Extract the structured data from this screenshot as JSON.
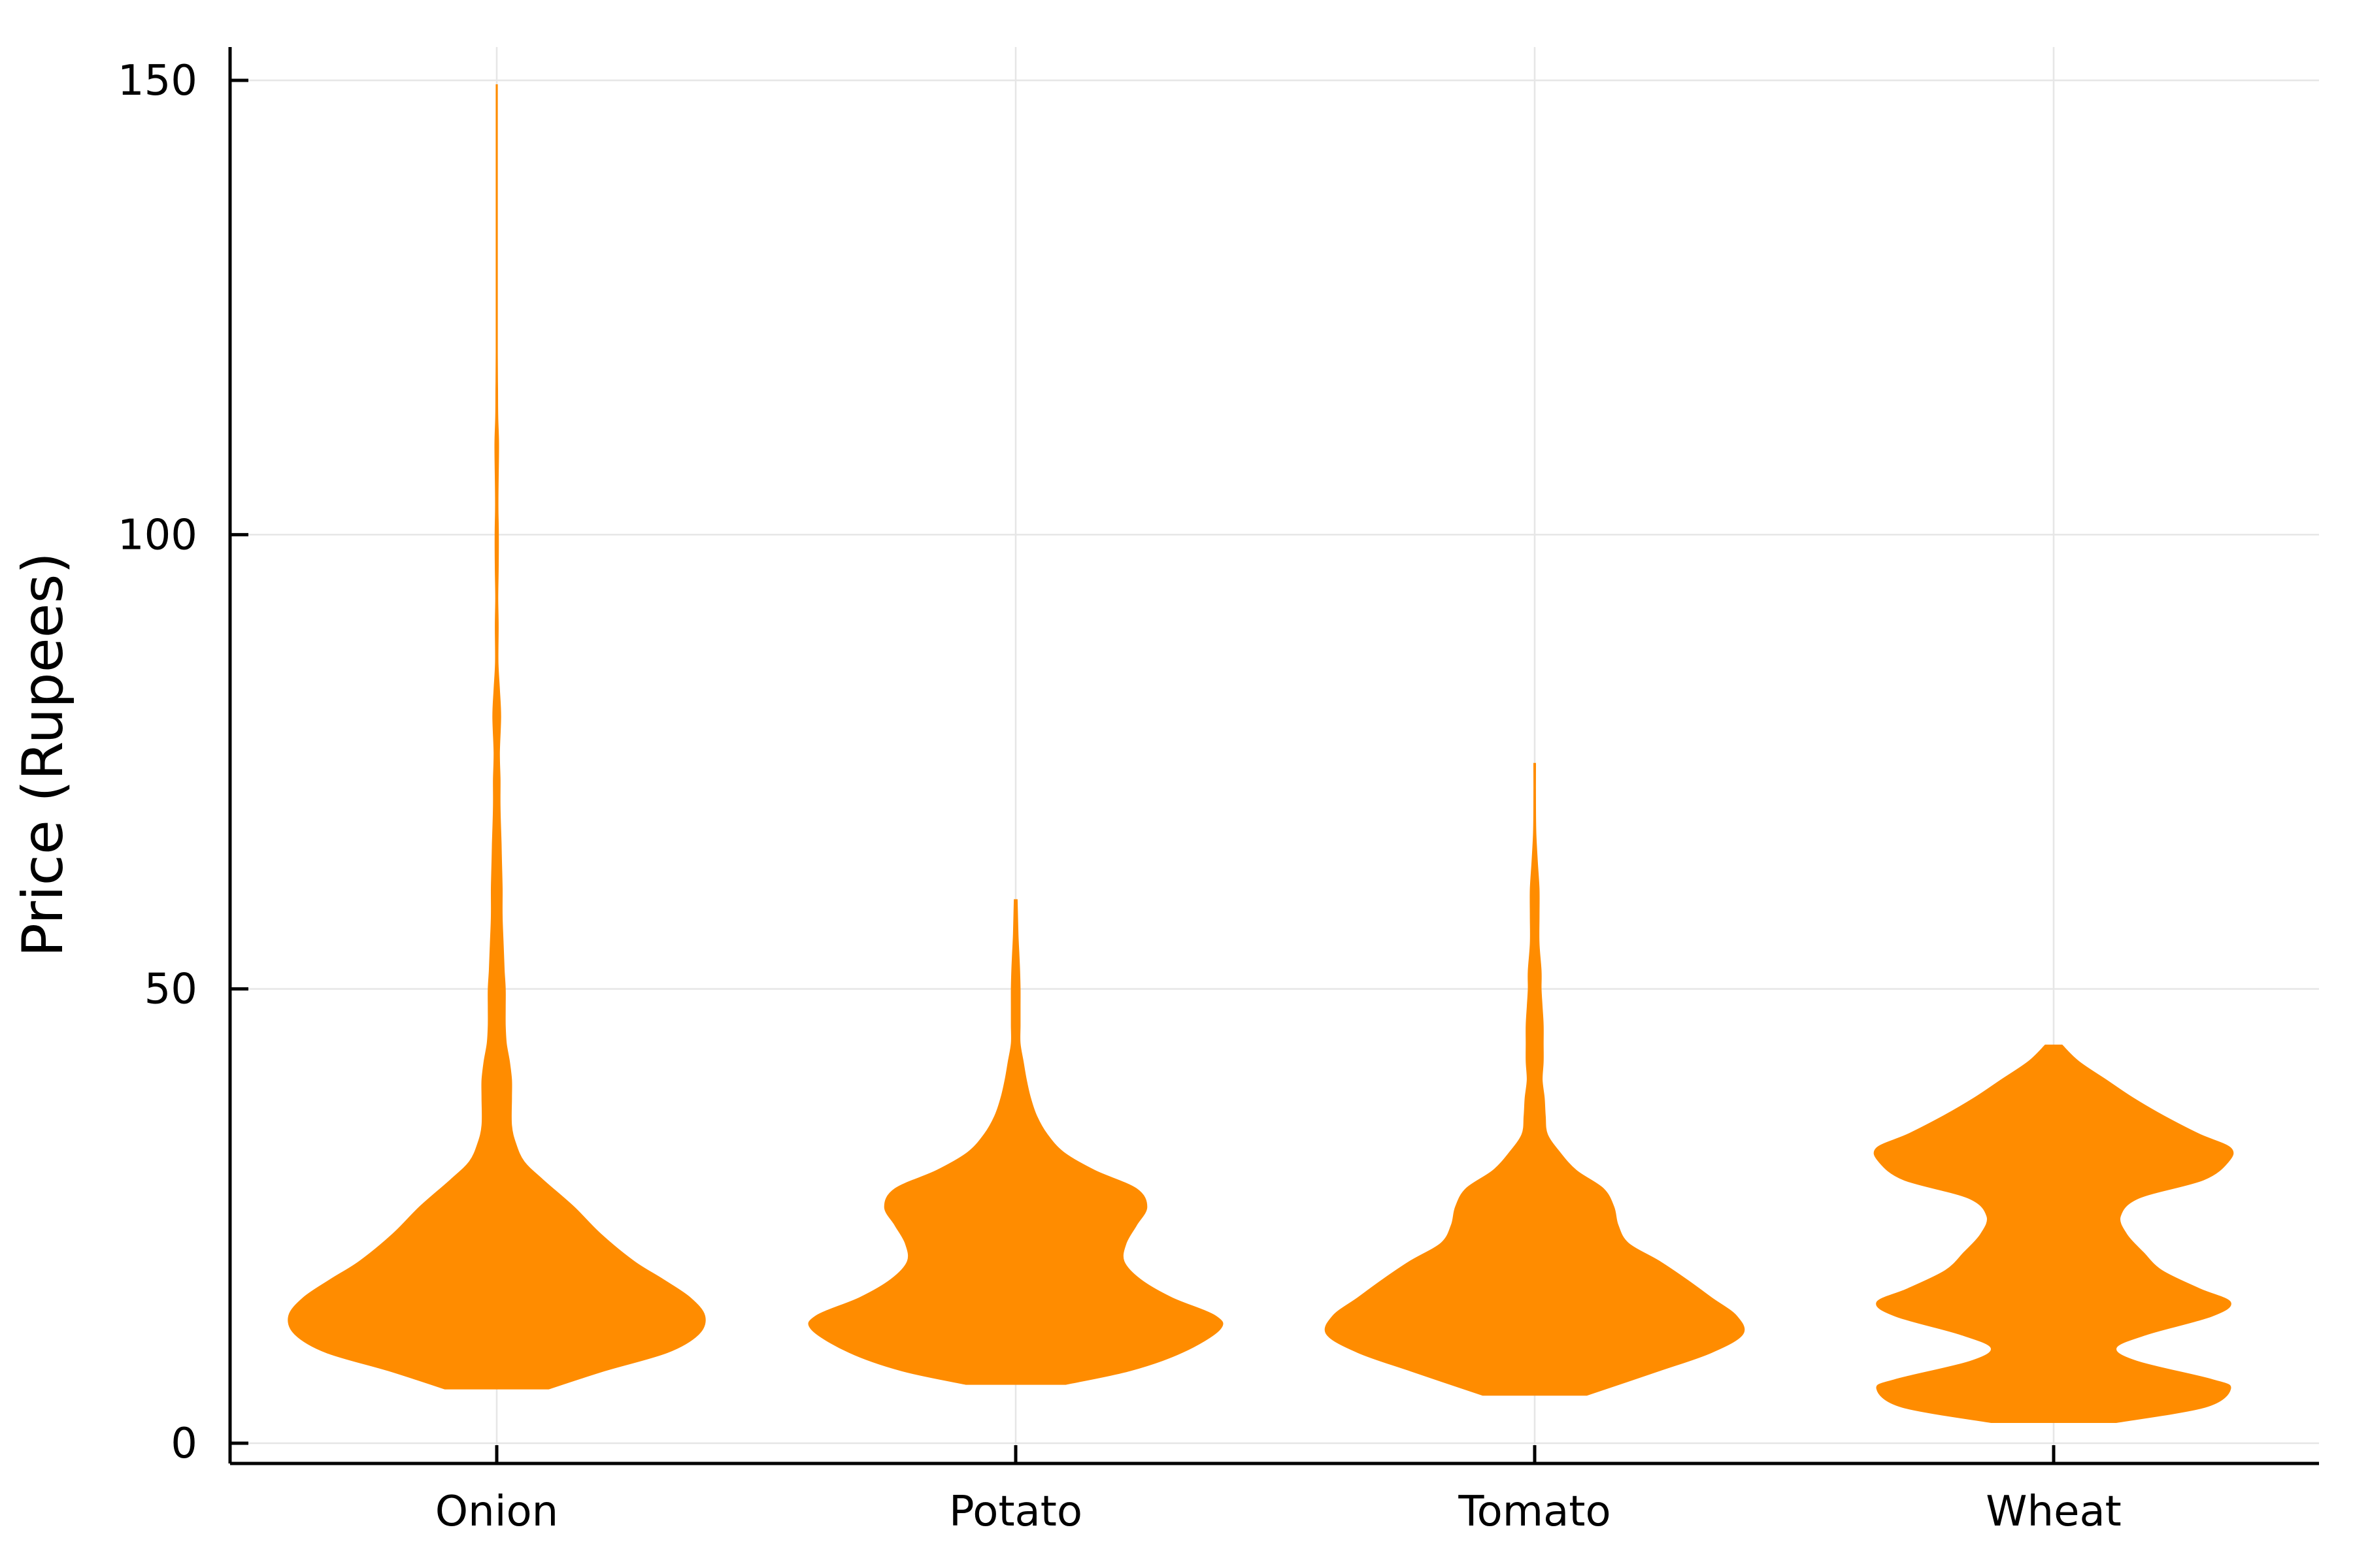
{
  "chart_data": {
    "type": "violin",
    "categories": [
      "Onion",
      "Potato",
      "Tomato",
      "Wheat"
    ],
    "ylabel": "Price (Rupees)",
    "xlabel": "",
    "ylim": [
      -4,
      154
    ],
    "yticks": [
      0,
      50,
      100,
      150
    ],
    "grid": true,
    "legend": "none",
    "color": "#ff8c00",
    "violins": [
      {
        "category": "Onion",
        "min": 6,
        "max": 149.5,
        "profile": [
          [
            6,
            0.25
          ],
          [
            8,
            0.52
          ],
          [
            10,
            0.82
          ],
          [
            12,
            0.97
          ],
          [
            14,
            1.0
          ],
          [
            16,
            0.93
          ],
          [
            18,
            0.8
          ],
          [
            20,
            0.66
          ],
          [
            23,
            0.5
          ],
          [
            26,
            0.37
          ],
          [
            29,
            0.22
          ],
          [
            31,
            0.13
          ],
          [
            33,
            0.09
          ],
          [
            35,
            0.07
          ],
          [
            38,
            0.07
          ],
          [
            40,
            0.07
          ],
          [
            42,
            0.06
          ],
          [
            44,
            0.045
          ],
          [
            46,
            0.04
          ],
          [
            48,
            0.04
          ],
          [
            50,
            0.04
          ],
          [
            52,
            0.035
          ],
          [
            55,
            0.03
          ],
          [
            58,
            0.025
          ],
          [
            61,
            0.025
          ],
          [
            64,
            0.022
          ],
          [
            66,
            0.02
          ],
          [
            70,
            0.015
          ],
          [
            73,
            0.015
          ],
          [
            76,
            0.012
          ],
          [
            80,
            0.018
          ],
          [
            83,
            0.012
          ],
          [
            86,
            0.005
          ],
          [
            90,
            0.006
          ],
          [
            93,
            0.004
          ],
          [
            96,
            0.006
          ],
          [
            100,
            0.007
          ],
          [
            103,
            0.005
          ],
          [
            106,
            0.006
          ],
          [
            110,
            0.008
          ],
          [
            113,
            0.004
          ],
          [
            116,
            0.003
          ],
          [
            120,
            0.002
          ],
          [
            130,
            0.002
          ],
          [
            140,
            0.002
          ],
          [
            149.5,
            0.002
          ]
        ]
      },
      {
        "category": "Potato",
        "min": 6.5,
        "max": 59.8,
        "profile": [
          [
            6.5,
            0.24
          ],
          [
            8,
            0.55
          ],
          [
            10,
            0.8
          ],
          [
            12.5,
            0.98
          ],
          [
            14,
            0.96
          ],
          [
            16,
            0.75
          ],
          [
            18,
            0.6
          ],
          [
            20,
            0.52
          ],
          [
            22,
            0.53
          ],
          [
            24,
            0.58
          ],
          [
            26,
            0.63
          ],
          [
            28,
            0.58
          ],
          [
            30,
            0.38
          ],
          [
            32,
            0.23
          ],
          [
            34,
            0.15
          ],
          [
            36,
            0.1
          ],
          [
            38,
            0.07
          ],
          [
            40,
            0.05
          ],
          [
            42,
            0.035
          ],
          [
            44,
            0.02
          ],
          [
            46,
            0.02
          ],
          [
            48,
            0.02
          ],
          [
            50,
            0.02
          ],
          [
            52,
            0.018
          ],
          [
            54,
            0.014
          ],
          [
            56,
            0.01
          ],
          [
            58,
            0.008
          ],
          [
            59.8,
            0.006
          ]
        ]
      },
      {
        "category": "Tomato",
        "min": 5.3,
        "max": 74.8,
        "profile": [
          [
            5.3,
            0.25
          ],
          [
            8,
            0.6
          ],
          [
            10,
            0.85
          ],
          [
            12,
            1.0
          ],
          [
            14,
            0.97
          ],
          [
            16,
            0.85
          ],
          [
            18,
            0.73
          ],
          [
            20,
            0.6
          ],
          [
            22,
            0.45
          ],
          [
            24,
            0.4
          ],
          [
            26,
            0.38
          ],
          [
            28,
            0.33
          ],
          [
            30,
            0.2
          ],
          [
            32,
            0.12
          ],
          [
            34,
            0.06
          ],
          [
            36,
            0.05
          ],
          [
            38,
            0.045
          ],
          [
            40,
            0.035
          ],
          [
            42,
            0.04
          ],
          [
            44,
            0.04
          ],
          [
            46,
            0.04
          ],
          [
            48,
            0.035
          ],
          [
            50,
            0.03
          ],
          [
            52,
            0.03
          ],
          [
            55,
            0.02
          ],
          [
            58,
            0.02
          ],
          [
            61,
            0.02
          ],
          [
            64,
            0.012
          ],
          [
            67,
            0.005
          ],
          [
            70,
            0.003
          ],
          [
            74.8,
            0.003
          ]
        ]
      },
      {
        "category": "Wheat",
        "min": 2.3,
        "max": 43.8,
        "profile": [
          [
            2.3,
            0.3
          ],
          [
            4,
            0.73
          ],
          [
            6,
            0.85
          ],
          [
            7,
            0.76
          ],
          [
            9,
            0.4
          ],
          [
            10.5,
            0.3
          ],
          [
            12,
            0.45
          ],
          [
            14,
            0.76
          ],
          [
            15.5,
            0.85
          ],
          [
            17,
            0.7
          ],
          [
            19,
            0.52
          ],
          [
            21,
            0.43
          ],
          [
            23,
            0.35
          ],
          [
            25,
            0.32
          ],
          [
            27,
            0.41
          ],
          [
            29,
            0.72
          ],
          [
            31,
            0.84
          ],
          [
            32.5,
            0.85
          ],
          [
            34,
            0.7
          ],
          [
            36,
            0.53
          ],
          [
            38,
            0.38
          ],
          [
            40,
            0.25
          ],
          [
            42,
            0.12
          ],
          [
            43.8,
            0.04
          ]
        ]
      }
    ]
  }
}
